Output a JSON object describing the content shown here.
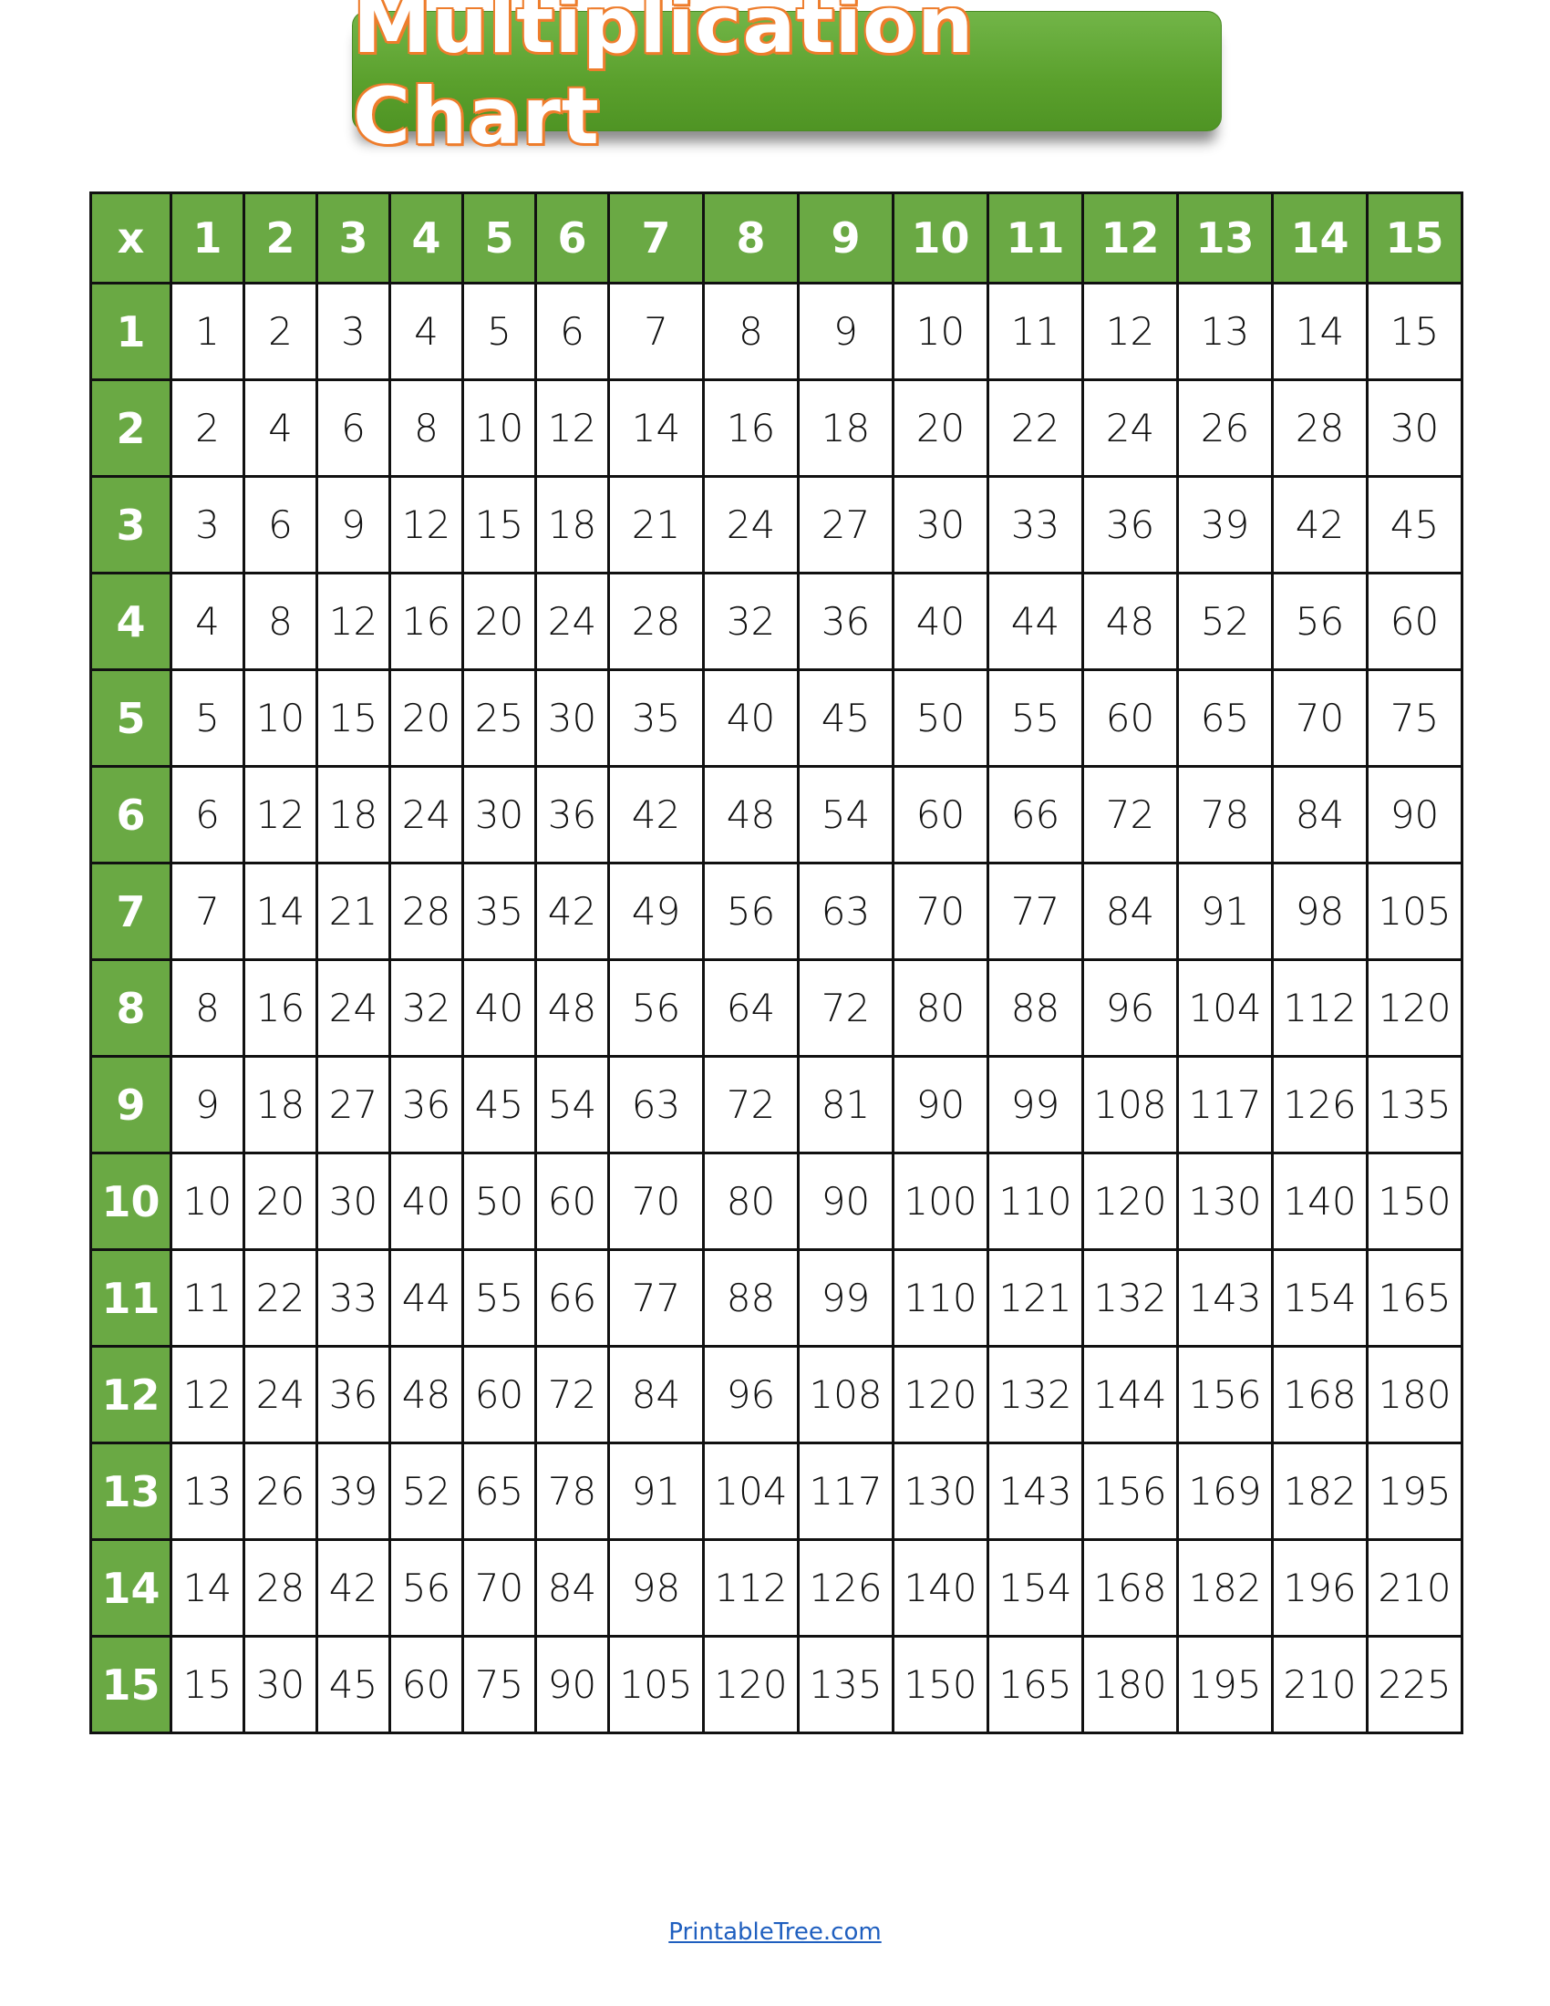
{
  "title": "Multiplication Chart",
  "colors": {
    "header_green": "#6aa944",
    "title_outline": "#ee7d2c",
    "link": "#1f5fbf"
  },
  "table": {
    "corner": "x",
    "columns": [
      "1",
      "2",
      "3",
      "4",
      "5",
      "6",
      "7",
      "8",
      "9",
      "10",
      "11",
      "12",
      "13",
      "14",
      "15"
    ],
    "rows": [
      {
        "label": "1",
        "values": [
          "1",
          "2",
          "3",
          "4",
          "5",
          "6",
          "7",
          "8",
          "9",
          "10",
          "11",
          "12",
          "13",
          "14",
          "15"
        ]
      },
      {
        "label": "2",
        "values": [
          "2",
          "4",
          "6",
          "8",
          "10",
          "12",
          "14",
          "16",
          "18",
          "20",
          "22",
          "24",
          "26",
          "28",
          "30"
        ]
      },
      {
        "label": "3",
        "values": [
          "3",
          "6",
          "9",
          "12",
          "15",
          "18",
          "21",
          "24",
          "27",
          "30",
          "33",
          "36",
          "39",
          "42",
          "45"
        ]
      },
      {
        "label": "4",
        "values": [
          "4",
          "8",
          "12",
          "16",
          "20",
          "24",
          "28",
          "32",
          "36",
          "40",
          "44",
          "48",
          "52",
          "56",
          "60"
        ]
      },
      {
        "label": "5",
        "values": [
          "5",
          "10",
          "15",
          "20",
          "25",
          "30",
          "35",
          "40",
          "45",
          "50",
          "55",
          "60",
          "65",
          "70",
          "75"
        ]
      },
      {
        "label": "6",
        "values": [
          "6",
          "12",
          "18",
          "24",
          "30",
          "36",
          "42",
          "48",
          "54",
          "60",
          "66",
          "72",
          "78",
          "84",
          "90"
        ]
      },
      {
        "label": "7",
        "values": [
          "7",
          "14",
          "21",
          "28",
          "35",
          "42",
          "49",
          "56",
          "63",
          "70",
          "77",
          "84",
          "91",
          "98",
          "105"
        ]
      },
      {
        "label": "8",
        "values": [
          "8",
          "16",
          "24",
          "32",
          "40",
          "48",
          "56",
          "64",
          "72",
          "80",
          "88",
          "96",
          "104",
          "112",
          "120"
        ]
      },
      {
        "label": "9",
        "values": [
          "9",
          "18",
          "27",
          "36",
          "45",
          "54",
          "63",
          "72",
          "81",
          "90",
          "99",
          "108",
          "117",
          "126",
          "135"
        ]
      },
      {
        "label": "10",
        "values": [
          "10",
          "20",
          "30",
          "40",
          "50",
          "60",
          "70",
          "80",
          "90",
          "100",
          "110",
          "120",
          "130",
          "140",
          "150"
        ]
      },
      {
        "label": "11",
        "values": [
          "11",
          "22",
          "33",
          "44",
          "55",
          "66",
          "77",
          "88",
          "99",
          "110",
          "121",
          "132",
          "143",
          "154",
          "165"
        ]
      },
      {
        "label": "12",
        "values": [
          "12",
          "24",
          "36",
          "48",
          "60",
          "72",
          "84",
          "96",
          "108",
          "120",
          "132",
          "144",
          "156",
          "168",
          "180"
        ]
      },
      {
        "label": "13",
        "values": [
          "13",
          "26",
          "39",
          "52",
          "65",
          "78",
          "91",
          "104",
          "117",
          "130",
          "143",
          "156",
          "169",
          "182",
          "195"
        ]
      },
      {
        "label": "14",
        "values": [
          "14",
          "28",
          "42",
          "56",
          "70",
          "84",
          "98",
          "112",
          "126",
          "140",
          "154",
          "168",
          "182",
          "196",
          "210"
        ]
      },
      {
        "label": "15",
        "values": [
          "15",
          "30",
          "45",
          "60",
          "75",
          "90",
          "105",
          "120",
          "135",
          "150",
          "165",
          "180",
          "195",
          "210",
          "225"
        ]
      }
    ]
  },
  "footer": {
    "link_text": "PrintableTree.com"
  }
}
